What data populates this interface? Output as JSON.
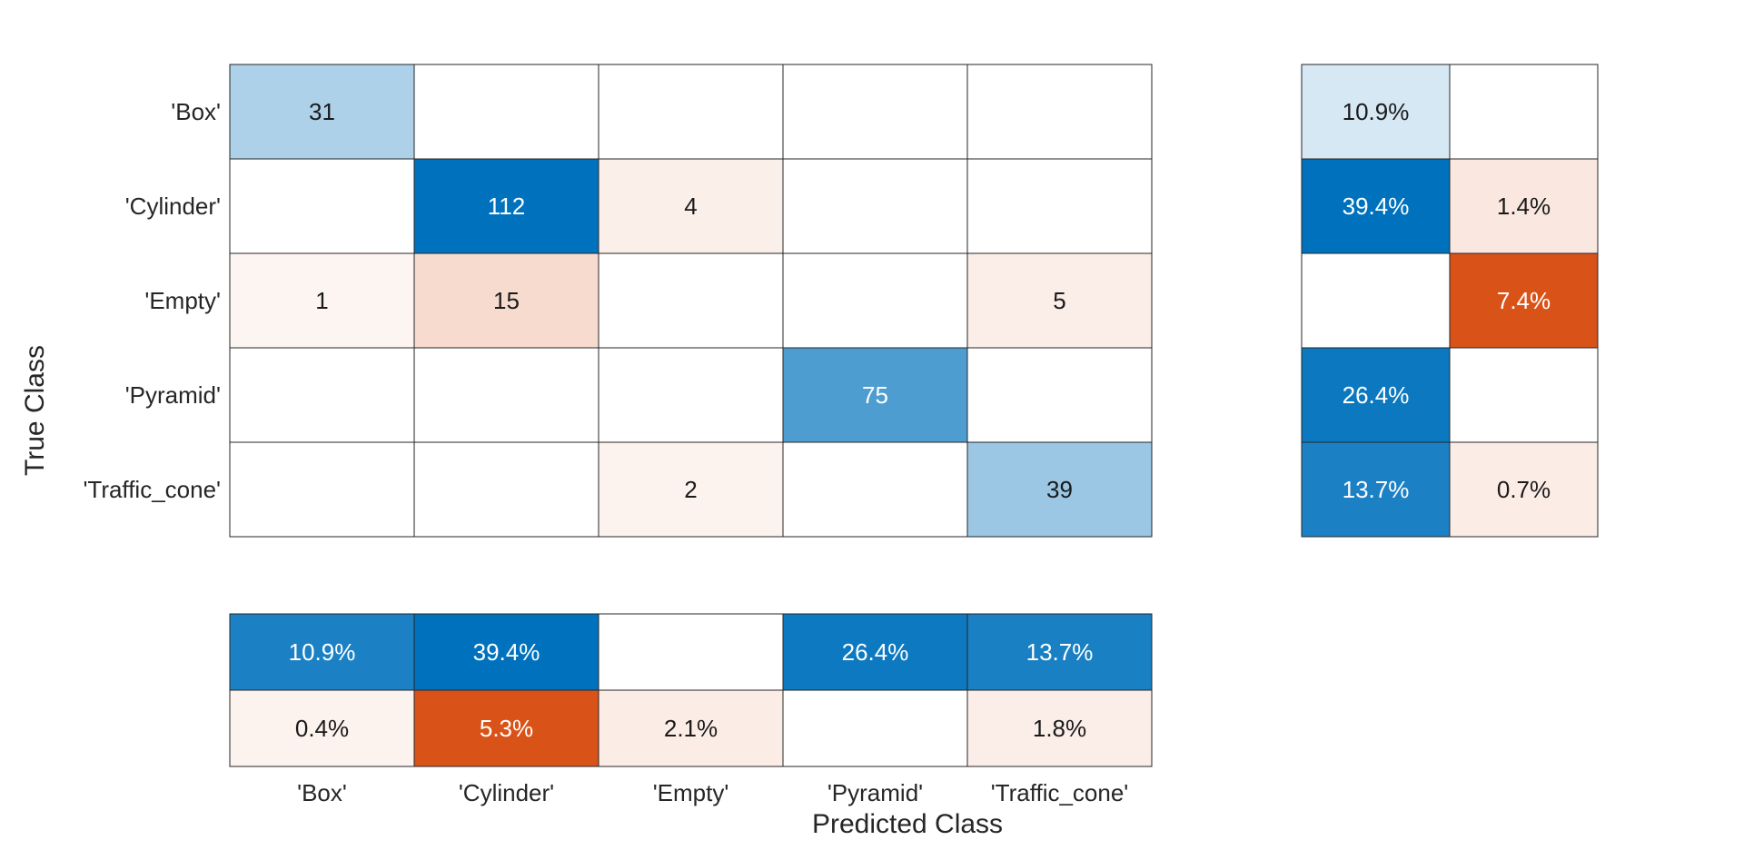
{
  "chart_data": {
    "type": "heatmap",
    "title": "",
    "xlabel": "Predicted Class",
    "ylabel": "True Class",
    "categories": [
      "'Box'",
      "'Cylinder'",
      "'Empty'",
      "'Pyramid'",
      "'Traffic_cone'"
    ],
    "matrix": [
      [
        31,
        0,
        0,
        0,
        0
      ],
      [
        0,
        112,
        4,
        0,
        0
      ],
      [
        1,
        15,
        0,
        0,
        5
      ],
      [
        0,
        0,
        0,
        75,
        0
      ],
      [
        0,
        0,
        2,
        0,
        39
      ]
    ],
    "row_summary": [
      [
        "10.9%",
        ""
      ],
      [
        "39.4%",
        "1.4%"
      ],
      [
        "",
        "7.4%"
      ],
      [
        "26.4%",
        ""
      ],
      [
        "13.7%",
        "0.7%"
      ]
    ],
    "column_summary": [
      [
        "10.9%",
        "39.4%",
        "",
        "26.4%",
        "13.7%"
      ],
      [
        "0.4%",
        "5.3%",
        "2.1%",
        "",
        "1.8%"
      ]
    ],
    "colors": {
      "correct": "#0072BD",
      "incorrect": "#D95319",
      "grid": "#262626",
      "background": "#ffffff"
    }
  }
}
